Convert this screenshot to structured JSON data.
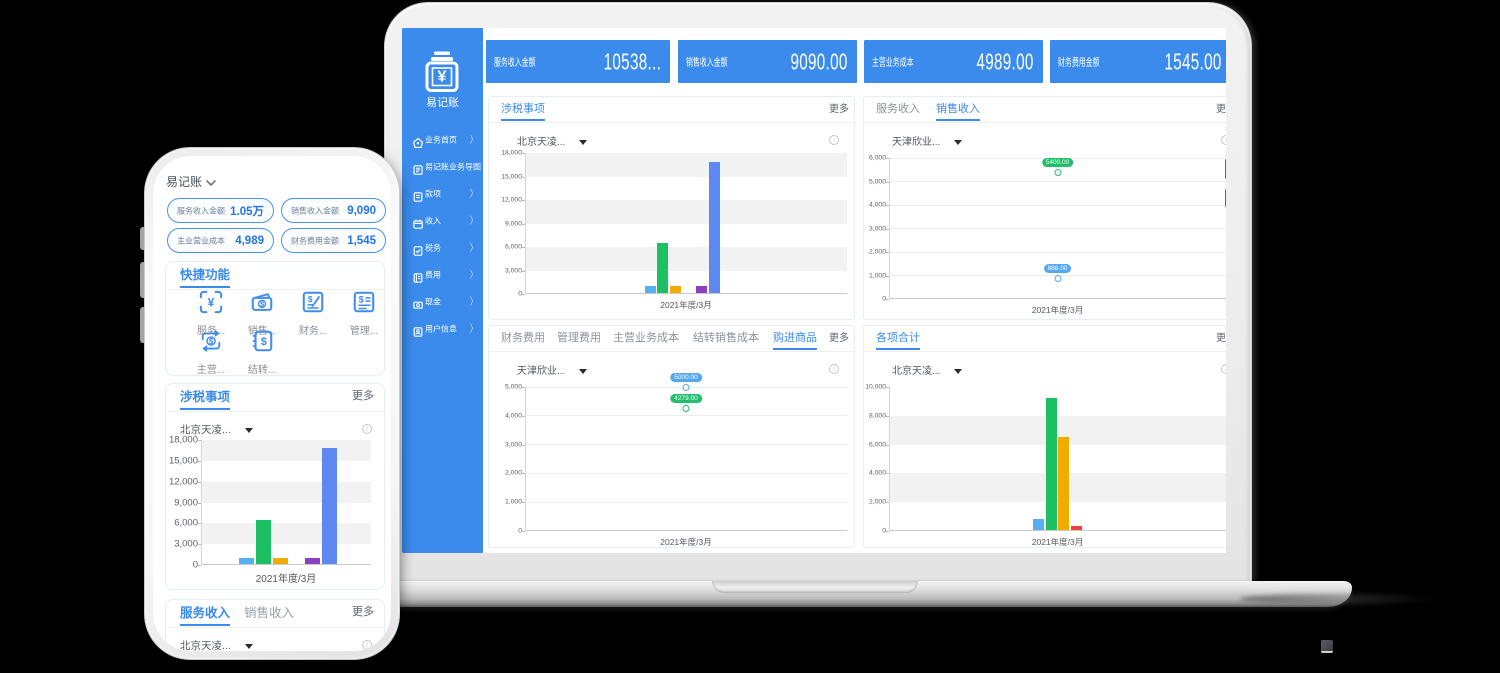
{
  "app": {
    "name": "易记账",
    "accent_color": "#3a8bec"
  },
  "laptop": {
    "logo": {
      "title": "易记账",
      "icon": "money-jar-icon"
    },
    "sidebar": {
      "items": [
        {
          "label": "业务首页",
          "icon": "home-icon",
          "chevron": true
        },
        {
          "label": "易记账业务导图",
          "icon": "map-icon",
          "chevron": false
        },
        {
          "label": "款项",
          "icon": "doc-icon",
          "chevron": true
        },
        {
          "label": "收入",
          "icon": "box-icon",
          "chevron": true
        },
        {
          "label": "税务",
          "icon": "check-doc-icon",
          "chevron": true
        },
        {
          "label": "费用",
          "icon": "book-icon",
          "chevron": true
        },
        {
          "label": "现金",
          "icon": "cash-icon",
          "chevron": true
        },
        {
          "label": "用户信息",
          "icon": "user-doc-icon",
          "chevron": true
        }
      ]
    },
    "stats": [
      {
        "label": "服务收入金额",
        "value": "10538..."
      },
      {
        "label": "销售收入金额",
        "value": "9090.00"
      },
      {
        "label": "主营业务成本",
        "value": "4989.00"
      },
      {
        "label": "财务费用金额",
        "value": "1545.00"
      }
    ],
    "cards": [
      {
        "tabs": [
          {
            "label": "涉税事项",
            "active": true
          }
        ],
        "more": "更多",
        "dropdown": "北京天凌...",
        "chart": {
          "type": "bar",
          "ymax": 18000,
          "ystep": 3000,
          "bands": true,
          "categories": [
            "2021年度/3月"
          ],
          "series": [
            {
              "name": "lightblue",
              "color": "#54b0f2",
              "value": 850
            },
            {
              "name": "green",
              "color": "#1dbf63",
              "value": 6400
            },
            {
              "name": "yellow",
              "color": "#f0ad00",
              "value": 850
            },
            {
              "name": "purple",
              "color": "#8d3fc0",
              "value": 900,
              "gap_before": true
            },
            {
              "name": "blue",
              "color": "#5c88f0",
              "value": 16750
            }
          ]
        }
      },
      {
        "tabs": [
          {
            "label": "服务收入",
            "active": false
          },
          {
            "label": "销售收入",
            "active": true
          }
        ],
        "more": "更多",
        "dropdown": "天津欣业...",
        "clipped_buttons": true,
        "chart": {
          "type": "point",
          "ymax": 6000,
          "ystep": 1000,
          "bands": false,
          "categories": [
            "2021年度/3月"
          ],
          "series": [
            {
              "name": "green",
              "color": "#21bf6b",
              "value": 5400,
              "label": "5400.00"
            },
            {
              "name": "blue",
              "color": "#54a8f0",
              "value": 888,
              "label": "888.00"
            }
          ]
        }
      },
      {
        "tabs": [
          {
            "label": "财务费用",
            "active": false
          },
          {
            "label": "管理费用",
            "active": false
          },
          {
            "label": "主营业务成本",
            "active": false
          },
          {
            "label": "结转销售成本",
            "active": false
          },
          {
            "label": "购进商品",
            "active": true
          }
        ],
        "more": "更多",
        "dropdown": "天津欣业...",
        "chart": {
          "type": "point",
          "ymax": 5000,
          "ystep": 1000,
          "bands": false,
          "categories": [
            "2021年度/3月"
          ],
          "series": [
            {
              "name": "blue",
              "color": "#54a8f0",
              "value": 5000,
              "label": "5000.00"
            },
            {
              "name": "green",
              "color": "#21bf6b",
              "value": 4279,
              "label": "4279.00"
            }
          ]
        }
      },
      {
        "tabs": [
          {
            "label": "各项合计",
            "active": true
          }
        ],
        "more": "更多",
        "dropdown": "北京天凌...",
        "chart": {
          "type": "bar",
          "ymax": 10000,
          "ystep": 2000,
          "bands": true,
          "categories": [
            "2021年度/3月"
          ],
          "series": [
            {
              "name": "lightblue",
              "color": "#54b0f2",
              "value": 780
            },
            {
              "name": "green",
              "color": "#1dbf63",
              "value": 9200
            },
            {
              "name": "yellow",
              "color": "#f0ad00",
              "value": 6450
            },
            {
              "name": "red",
              "color": "#f04134",
              "value": 250
            }
          ]
        }
      }
    ]
  },
  "phone": {
    "header": {
      "title": "易记账",
      "caret_icon": "chevron-down-icon"
    },
    "chips": [
      {
        "label": "服务收入金额",
        "value": "1.05万"
      },
      {
        "label": "销售收入金额",
        "value": "9,090"
      },
      {
        "label": "主业营业成本",
        "value": "4,989"
      },
      {
        "label": "财务费用金额",
        "value": "1,545"
      }
    ],
    "quick": {
      "title": "快捷功能",
      "items": [
        {
          "label": "服务...",
          "icon": "scan-yen-icon"
        },
        {
          "label": "销售...",
          "icon": "wallet-icon"
        },
        {
          "label": "财务...",
          "icon": "doc-edit-icon"
        },
        {
          "label": "管理...",
          "icon": "doc-lines-icon"
        },
        {
          "label": "主营...",
          "icon": "cycle-icon"
        },
        {
          "label": "结转...",
          "icon": "ledger-icon"
        }
      ]
    },
    "tax_card": {
      "tabs": [
        {
          "label": "涉税事项",
          "active": true
        }
      ],
      "more": "更多",
      "dropdown": "北京天凌...",
      "chart": {
        "type": "bar",
        "ymax": 18000,
        "ystep": 3000,
        "bands": true,
        "categories": [
          "2021年度/3月"
        ],
        "series": [
          {
            "name": "lightblue",
            "color": "#54b0f2",
            "value": 850
          },
          {
            "name": "green",
            "color": "#1dbf63",
            "value": 6400
          },
          {
            "name": "yellow",
            "color": "#f0ad00",
            "value": 850
          },
          {
            "name": "purple",
            "color": "#8d3fc0",
            "value": 900,
            "gap_before": true
          },
          {
            "name": "blue",
            "color": "#5c88f0",
            "value": 16750
          }
        ]
      }
    },
    "revenue_card": {
      "tabs": [
        {
          "label": "服务收入",
          "active": true
        },
        {
          "label": "销售收入",
          "active": false
        }
      ],
      "more": "更多",
      "dropdown": "北京天凌..."
    }
  }
}
